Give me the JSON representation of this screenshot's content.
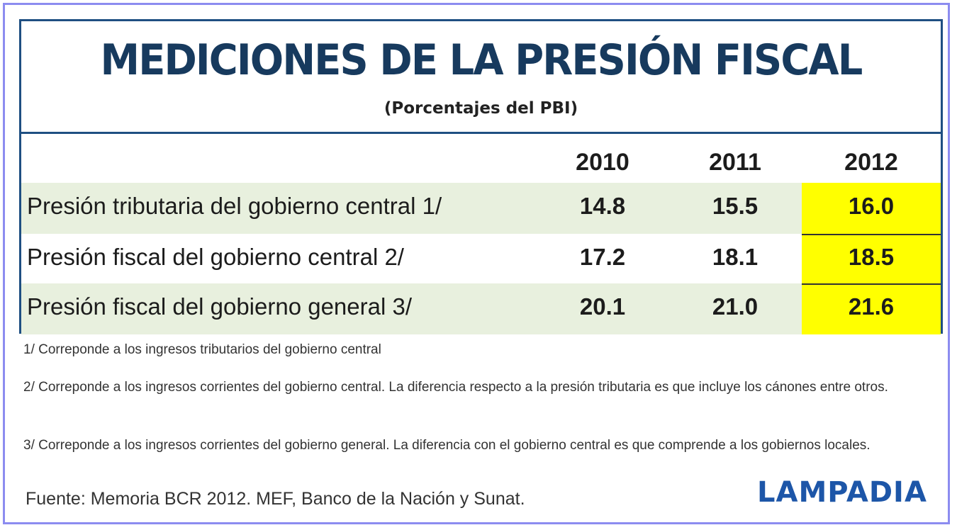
{
  "chart_data": {
    "type": "table",
    "title": "MEDICIONES DE LA PRESIÓN FISCAL",
    "subtitle": "(Porcentajes del PBI)",
    "columns": [
      "2010",
      "2011",
      "2012"
    ],
    "rows": [
      {
        "label": "Presión tributaria del gobierno central 1/",
        "values": [
          "14.8",
          "15.5",
          "16.0"
        ]
      },
      {
        "label": "Presión fiscal del gobierno central 2/",
        "values": [
          "17.2",
          "18.1",
          "18.5"
        ]
      },
      {
        "label": "Presión fiscal del gobierno general 3/",
        "values": [
          "20.1",
          "21.0",
          "21.6"
        ]
      }
    ],
    "highlight_column": "2012",
    "highlight_color": "#ffff00",
    "notes": [
      "1/ Correponde a los ingresos tributarios del gobierno central",
      "2/ Correponde a los ingresos corrientes del gobierno central. La diferencia respecto a la presión tributaria es que incluye los cánones entre otros.",
      "3/ Correponde a los ingresos corrientes del gobierno general. La diferencia con el gobierno central es que comprende a los gobiernos locales."
    ],
    "source": "Fuente: Memoria BCR 2012. MEF, Banco de la Nación y Sunat.",
    "brand": "LAMPADIA"
  },
  "colors": {
    "title": "#173a5e",
    "border": "#1f4f82",
    "row_shade": "#e8f0de",
    "brand": "#1d56a8"
  }
}
